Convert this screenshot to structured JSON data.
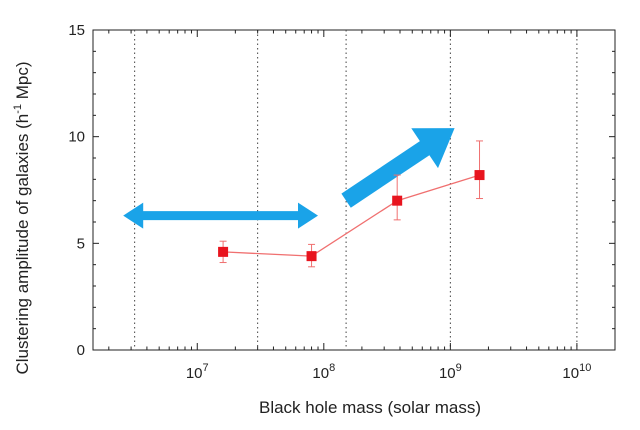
{
  "chart_data": {
    "type": "line",
    "title": "",
    "xlabel": "Black hole mass (solar mass)",
    "ylabel": {
      "main": "Clustering amplitude of galaxies (h",
      "superscript": "-1",
      "tail": " Mpc)"
    },
    "x_scale": "log10",
    "xlim": [
      1500000,
      20000000000
    ],
    "ylim": [
      0,
      15
    ],
    "y_ticks": [
      "0",
      "5",
      "10",
      "15"
    ],
    "x_ticks": [
      {
        "value": 10000000,
        "base": "10",
        "exp": "7"
      },
      {
        "value": 100000000,
        "base": "10",
        "exp": "8"
      },
      {
        "value": 1000000000,
        "base": "10",
        "exp": "9"
      },
      {
        "value": 10000000000,
        "base": "10",
        "exp": "10"
      }
    ],
    "bin_boundaries": [
      3200000,
      30000000,
      150000000,
      1000000000,
      10000000000
    ],
    "grid": "vertical dotted at bin boundaries",
    "series": [
      {
        "color": "#e8141e",
        "line_color": "#f07070",
        "marker": "square",
        "points": [
          {
            "x": 16000000,
            "y": 4.6,
            "err_low": 4.1,
            "err_high": 5.1
          },
          {
            "x": 80000000,
            "y": 4.4,
            "err_low": 3.9,
            "err_high": 4.95
          },
          {
            "x": 380000000,
            "y": 7.0,
            "err_low": 6.1,
            "err_high": 8.2
          },
          {
            "x": 1700000000,
            "y": 8.2,
            "err_low": 7.1,
            "err_high": 9.8
          }
        ]
      }
    ],
    "annotations": [
      {
        "shape": "double-arrow",
        "color": "#1aa3e8",
        "from": {
          "x": 2600000,
          "y": 6.3
        },
        "to": {
          "x": 90000000,
          "y": 6.3
        }
      },
      {
        "shape": "arrow",
        "color": "#1aa3e8",
        "from": {
          "x": 150000000,
          "y": 7.0
        },
        "to": {
          "x": 1080000000,
          "y": 10.4
        }
      }
    ]
  }
}
